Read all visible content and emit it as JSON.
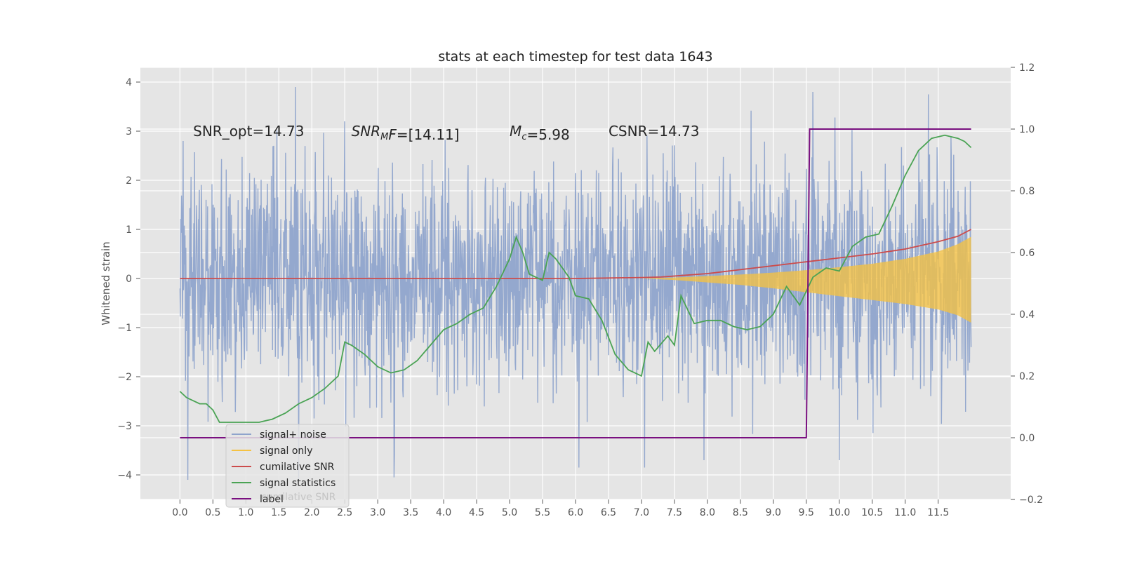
{
  "chart_data": {
    "type": "line",
    "title": "stats at each timestep for test data 1643",
    "ylabel": "Whitened strain",
    "y2label": "",
    "xlim": [
      -0.6,
      12.6
    ],
    "ylim": [
      -4.5,
      4.3
    ],
    "y2lim": [
      -0.2,
      1.2
    ],
    "grid": true,
    "x_ticks": [
      "0.0",
      "0.5",
      "1.0",
      "1.5",
      "2.0",
      "2.5",
      "3.0",
      "3.5",
      "4.0",
      "4.5",
      "5.0",
      "5.5",
      "6.0",
      "6.5",
      "7.0",
      "7.5",
      "8.0",
      "8.5",
      "9.0",
      "9.5",
      "10.0",
      "10.5",
      "11.0",
      "11.5"
    ],
    "y_ticks": [
      "−4",
      "−3",
      "−2",
      "−1",
      "0",
      "1",
      "2",
      "3",
      "4"
    ],
    "y2_ticks": [
      "−0.2",
      "0.0",
      "0.2",
      "0.4",
      "0.6",
      "0.8",
      "1.0",
      "1.2"
    ],
    "annotations": [
      {
        "x": 0.2,
        "y": 3.0,
        "parts": [
          {
            "t": "SNR_opt=14.73"
          }
        ]
      },
      {
        "x": 2.6,
        "y": 3.0,
        "parts": [
          {
            "t": "SNR",
            "it": true
          },
          {
            "t": "M",
            "it": true,
            "sub": true
          },
          {
            "t": "F",
            "it": true
          },
          {
            "t": "=[14.11]"
          }
        ]
      },
      {
        "x": 5.0,
        "y": 3.0,
        "parts": [
          {
            "t": "M",
            "it": true
          },
          {
            "t": "c",
            "it": true,
            "sub": true
          },
          {
            "t": "=5.98"
          }
        ]
      },
      {
        "x": 6.5,
        "y": 3.0,
        "parts": [
          {
            "t": "CSNR=14.73"
          }
        ]
      }
    ],
    "legend": {
      "position": "lower-left",
      "entries": [
        {
          "label": "signal+ noise",
          "color": "#8fa4cc"
        },
        {
          "label": "signal only",
          "color": "#f5c243"
        },
        {
          "label": "cumilative SNR",
          "color": "#cc4c4c"
        },
        {
          "label": "signal statistics",
          "color": "#4aa354"
        },
        {
          "label": "label",
          "color": "#7a1080"
        }
      ],
      "shadow_text": "cumilative SNR"
    },
    "series": [
      {
        "name": "signal+ noise",
        "axis": "left",
        "color": "#8fa4cc",
        "x_range": [
          0.0,
          12.0
        ],
        "amplitude_std": 1.15,
        "peaks": [
          [
            1.75,
            3.9
          ],
          [
            0.05,
            2.8
          ],
          [
            2.5,
            3.2
          ],
          [
            6.0,
            1.7
          ],
          [
            9.6,
            3.8
          ],
          [
            11.35,
            3.75
          ],
          [
            1.8,
            -4.1
          ],
          [
            0.12,
            -4.1
          ],
          [
            3.25,
            -4.05
          ],
          [
            6.05,
            -3.85
          ],
          [
            7.05,
            -3.85
          ],
          [
            10.0,
            -3.7
          ]
        ]
      },
      {
        "name": "signal only",
        "axis": "left",
        "color": "#f5c243",
        "x": [
          7.0,
          7.5,
          8.0,
          8.5,
          9.0,
          9.5,
          10.0,
          10.5,
          11.0,
          11.5,
          11.8,
          12.0
        ],
        "upper": [
          0.0,
          0.02,
          0.05,
          0.08,
          0.12,
          0.17,
          0.23,
          0.3,
          0.4,
          0.55,
          0.7,
          0.85
        ],
        "lower": [
          0.0,
          -0.03,
          -0.08,
          -0.13,
          -0.2,
          -0.28,
          -0.36,
          -0.44,
          -0.52,
          -0.63,
          -0.75,
          -0.9
        ]
      },
      {
        "name": "cumilative SNR",
        "axis": "left",
        "color": "#cc4c4c",
        "x": [
          0.0,
          1.0,
          2.0,
          3.0,
          4.0,
          5.0,
          6.0,
          6.5,
          7.0,
          7.3,
          7.6,
          8.0,
          8.5,
          9.0,
          9.5,
          10.0,
          10.5,
          11.0,
          11.5,
          11.8,
          12.0
        ],
        "y": [
          0.0,
          0.0,
          0.0,
          0.0,
          0.0,
          0.0,
          0.0,
          0.01,
          0.02,
          0.03,
          0.06,
          0.1,
          0.18,
          0.26,
          0.34,
          0.42,
          0.5,
          0.6,
          0.75,
          0.86,
          1.0
        ]
      },
      {
        "name": "signal statistics",
        "axis": "right",
        "color": "#4aa354",
        "x": [
          0.0,
          0.1,
          0.2,
          0.3,
          0.4,
          0.5,
          0.6,
          0.7,
          0.8,
          1.0,
          1.2,
          1.4,
          1.6,
          1.8,
          2.0,
          2.2,
          2.4,
          2.5,
          2.6,
          2.8,
          3.0,
          3.2,
          3.4,
          3.6,
          3.8,
          4.0,
          4.2,
          4.4,
          4.6,
          4.8,
          5.0,
          5.1,
          5.2,
          5.3,
          5.5,
          5.6,
          5.7,
          5.9,
          6.0,
          6.2,
          6.4,
          6.6,
          6.8,
          7.0,
          7.1,
          7.2,
          7.4,
          7.5,
          7.6,
          7.8,
          8.0,
          8.2,
          8.4,
          8.6,
          8.8,
          9.0,
          9.2,
          9.4,
          9.6,
          9.8,
          10.0,
          10.2,
          10.4,
          10.6,
          10.8,
          11.0,
          11.2,
          11.4,
          11.6,
          11.8,
          11.9,
          12.0
        ],
        "y": [
          0.15,
          0.13,
          0.12,
          0.11,
          0.11,
          0.09,
          0.05,
          0.05,
          0.05,
          0.05,
          0.05,
          0.06,
          0.08,
          0.11,
          0.13,
          0.16,
          0.2,
          0.31,
          0.3,
          0.27,
          0.23,
          0.21,
          0.22,
          0.25,
          0.3,
          0.35,
          0.37,
          0.4,
          0.42,
          0.49,
          0.58,
          0.65,
          0.6,
          0.53,
          0.51,
          0.6,
          0.58,
          0.52,
          0.46,
          0.45,
          0.38,
          0.27,
          0.22,
          0.2,
          0.31,
          0.28,
          0.33,
          0.3,
          0.46,
          0.37,
          0.38,
          0.38,
          0.36,
          0.35,
          0.36,
          0.4,
          0.49,
          0.43,
          0.52,
          0.55,
          0.54,
          0.62,
          0.65,
          0.66,
          0.75,
          0.85,
          0.93,
          0.97,
          0.98,
          0.97,
          0.96,
          0.94
        ]
      },
      {
        "name": "label",
        "axis": "right",
        "color": "#7a1080",
        "x": [
          0.0,
          9.5,
          9.55,
          12.0
        ],
        "y": [
          0.0,
          0.0,
          1.0,
          1.0
        ]
      }
    ]
  }
}
